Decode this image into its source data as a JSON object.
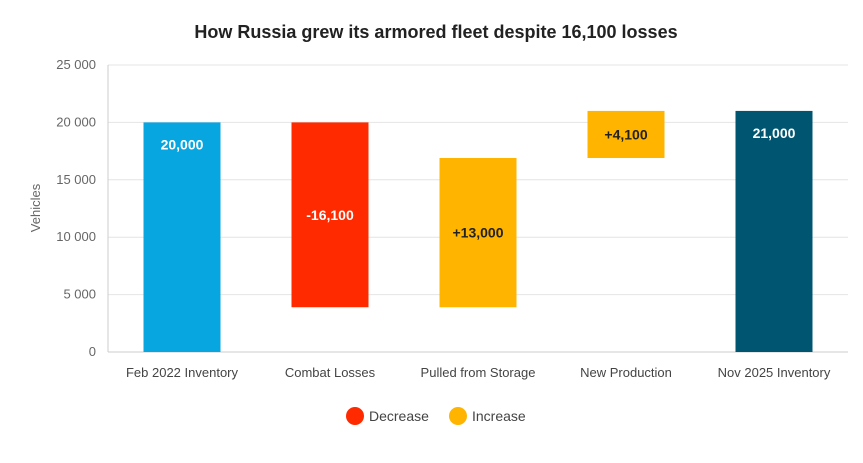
{
  "chart_data": {
    "type": "waterfall",
    "title": "How Russia grew its armored fleet despite 16,100 losses",
    "ylabel": "Vehicles",
    "xlabel": "",
    "ylim": [
      0,
      25000
    ],
    "yticks": [
      0,
      5000,
      10000,
      15000,
      20000,
      25000
    ],
    "ytick_labels": [
      "0",
      "5 000",
      "10 000",
      "15 000",
      "20 000",
      "25 000"
    ],
    "grid": true,
    "legend_position": "bottom",
    "categories": [
      "Feb 2022 Inventory",
      "Combat Losses",
      "Pulled from Storage",
      "New Production",
      "Nov 2025 Inventory"
    ],
    "bars": [
      {
        "category": "Feb 2022 Inventory",
        "kind": "total",
        "start": 0,
        "end": 20000,
        "label": "20,000",
        "color": "#08a6e0",
        "label_color": "#ffffff"
      },
      {
        "category": "Combat Losses",
        "kind": "decrease",
        "start": 20000,
        "end": 3900,
        "label": "-16,100",
        "color": "#ff2a00",
        "label_color": "#ffffff"
      },
      {
        "category": "Pulled from Storage",
        "kind": "increase",
        "start": 3900,
        "end": 16900,
        "label": "+13,000",
        "color": "#ffb400",
        "label_color": "#222222"
      },
      {
        "category": "New Production",
        "kind": "increase",
        "start": 16900,
        "end": 21000,
        "label": "+4,100",
        "color": "#ffb400",
        "label_color": "#222222"
      },
      {
        "category": "Nov 2025 Inventory",
        "kind": "total",
        "start": 0,
        "end": 21000,
        "label": "21,000",
        "color": "#005571",
        "label_color": "#ffffff"
      }
    ],
    "legend": [
      {
        "name": "Decrease",
        "color": "#ff2a00"
      },
      {
        "name": "Increase",
        "color": "#ffb400"
      }
    ]
  }
}
